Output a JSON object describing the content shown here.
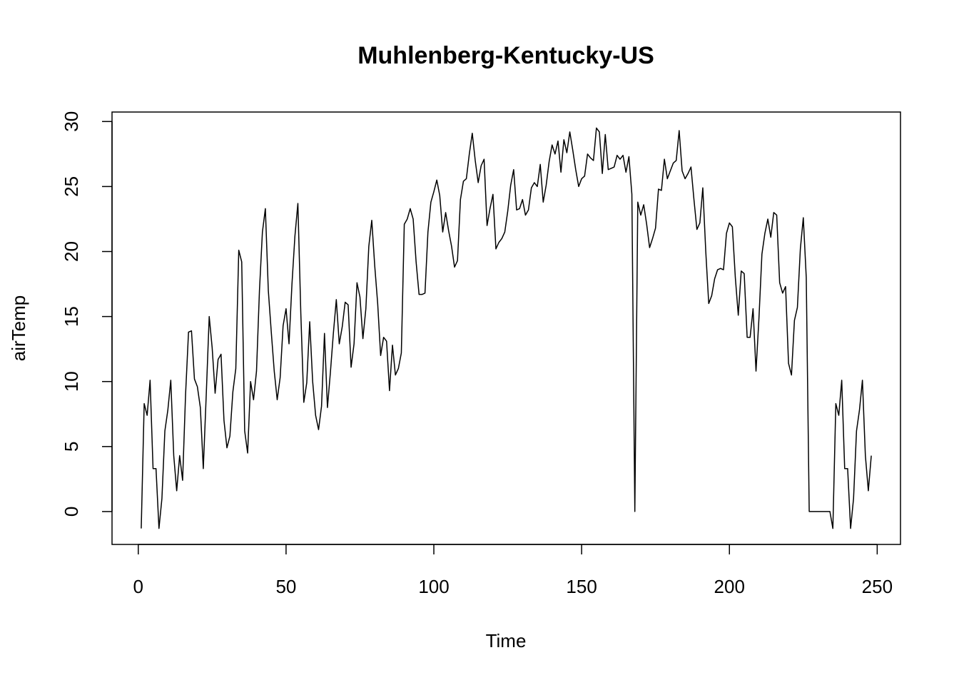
{
  "chart_data": {
    "type": "line",
    "title": "Muhlenberg-Kentucky-US",
    "x_label": "Time",
    "y_label": "airTemp",
    "x": [
      1,
      2,
      3,
      4,
      5,
      6,
      7,
      8,
      9,
      10,
      11,
      12,
      13,
      14,
      15,
      16,
      17,
      18,
      19,
      20,
      21,
      22,
      23,
      24,
      25,
      26,
      27,
      28,
      29,
      30,
      31,
      32,
      33,
      34,
      35,
      36,
      37,
      38,
      39,
      40,
      41,
      42,
      43,
      44,
      45,
      46,
      47,
      48,
      49,
      50,
      51,
      52,
      53,
      54,
      55,
      56,
      57,
      58,
      59,
      60,
      61,
      62,
      63,
      64,
      65,
      66,
      67,
      68,
      69,
      70,
      71,
      72,
      73,
      74,
      75,
      76,
      77,
      78,
      79,
      80,
      81,
      82,
      83,
      84,
      85,
      86,
      87,
      88,
      89,
      90,
      91,
      92,
      93,
      94,
      95,
      96,
      97,
      98,
      99,
      100,
      101,
      102,
      103,
      104,
      105,
      106,
      107,
      108,
      109,
      110,
      111,
      112,
      113,
      114,
      115,
      116,
      117,
      118,
      119,
      120,
      121,
      122,
      123,
      124,
      125,
      126,
      127,
      128,
      129,
      130,
      131,
      132,
      133,
      134,
      135,
      136,
      137,
      138,
      139,
      140,
      141,
      142,
      143,
      144,
      145,
      146,
      147,
      148,
      149,
      150,
      151,
      152,
      153,
      154,
      155,
      156,
      157,
      158,
      159,
      160,
      161,
      162,
      163,
      164,
      165,
      166,
      167,
      168,
      169,
      170,
      171,
      172,
      173,
      174,
      175,
      176,
      177,
      178,
      179,
      180,
      181,
      182,
      183,
      184,
      185,
      186,
      187,
      188,
      189,
      190,
      191,
      192,
      193,
      194,
      195,
      196,
      197,
      198,
      199,
      200,
      201,
      202,
      203,
      204,
      205,
      206,
      207,
      208,
      209,
      210,
      211,
      212,
      213,
      214,
      215,
      216,
      217,
      218,
      219,
      220,
      221,
      222,
      223,
      224,
      225,
      226,
      227,
      228,
      229,
      230,
      231,
      232,
      233,
      234,
      235,
      236,
      237,
      238,
      239,
      240,
      241,
      242,
      243,
      244,
      245,
      246,
      247,
      248
    ],
    "values": [
      -1.3,
      8.3,
      7.4,
      10.1,
      3.3,
      3.3,
      -1.3,
      1.0,
      6.2,
      7.8,
      10.1,
      4.3,
      1.6,
      4.3,
      2.4,
      9.0,
      13.8,
      13.9,
      10.2,
      9.6,
      8.0,
      3.3,
      9.0,
      15.0,
      12.6,
      9.1,
      11.7,
      12.1,
      7.0,
      4.9,
      5.8,
      9.2,
      11.0,
      20.1,
      19.2,
      6.2,
      4.5,
      10.0,
      8.6,
      10.8,
      17.0,
      21.5,
      23.3,
      17.0,
      13.8,
      10.8,
      8.6,
      10.3,
      14.3,
      15.6,
      12.9,
      17.5,
      21.2,
      23.7,
      15.2,
      8.4,
      9.9,
      14.6,
      10.0,
      7.4,
      6.3,
      8.1,
      13.7,
      8.0,
      10.7,
      13.7,
      16.3,
      12.9,
      14.2,
      16.1,
      15.9,
      11.1,
      12.9,
      17.6,
      16.5,
      13.3,
      15.6,
      20.4,
      22.4,
      18.9,
      16.0,
      12.0,
      13.4,
      13.1,
      9.3,
      12.8,
      10.5,
      11.0,
      12.2,
      22.1,
      22.5,
      23.3,
      22.5,
      19.2,
      16.7,
      16.7,
      16.8,
      21.5,
      23.8,
      24.6,
      25.5,
      24.3,
      21.5,
      23.0,
      21.6,
      20.4,
      18.8,
      19.3,
      24.0,
      25.4,
      25.6,
      27.5,
      29.1,
      27.0,
      25.3,
      26.6,
      27.1,
      22.0,
      23.3,
      24.4,
      20.2,
      20.7,
      21.0,
      21.5,
      23.1,
      25.1,
      26.3,
      23.2,
      23.3,
      24.0,
      22.8,
      23.2,
      24.9,
      25.3,
      25.0,
      26.7,
      23.8,
      25.1,
      26.9,
      28.2,
      27.5,
      28.5,
      26.1,
      28.6,
      27.6,
      29.2,
      27.8,
      26.3,
      25.0,
      25.6,
      25.8,
      27.5,
      27.2,
      27.0,
      29.5,
      29.2,
      26.0,
      29.0,
      26.3,
      26.4,
      26.5,
      27.4,
      27.1,
      27.4,
      26.1,
      27.3,
      24.4,
      0.0,
      23.8,
      22.8,
      23.6,
      22.1,
      20.3,
      21.0,
      21.8,
      24.8,
      24.7,
      27.1,
      25.6,
      26.2,
      26.8,
      27.0,
      29.3,
      26.2,
      25.6,
      26.0,
      26.5,
      24.0,
      21.7,
      22.2,
      24.9,
      20.0,
      16.0,
      16.6,
      17.9,
      18.6,
      18.7,
      18.6,
      21.4,
      22.2,
      21.9,
      18.0,
      15.1,
      18.5,
      18.3,
      13.4,
      13.4,
      15.6,
      10.8,
      14.9,
      19.8,
      21.4,
      22.5,
      21.1,
      23.0,
      22.8,
      17.6,
      16.8,
      17.3,
      11.4,
      10.5,
      14.7,
      15.7,
      20.2,
      22.6,
      18.0,
      0,
      0,
      0,
      0,
      0,
      0,
      0,
      0,
      -1.3,
      8.3,
      7.4,
      10.1,
      3.3,
      3.3,
      -1.3,
      1.0,
      6.2,
      7.8,
      10.1,
      4.3,
      1.6,
      4.3
    ],
    "color": "#000000",
    "xlim": [
      -8.88,
      257.88
    ],
    "xticks": [
      0,
      50,
      100,
      150,
      200,
      250
    ],
    "ylim": [
      -2.53,
      30.73
    ],
    "yticks": [
      0,
      5,
      10,
      15,
      20,
      25,
      30
    ]
  }
}
